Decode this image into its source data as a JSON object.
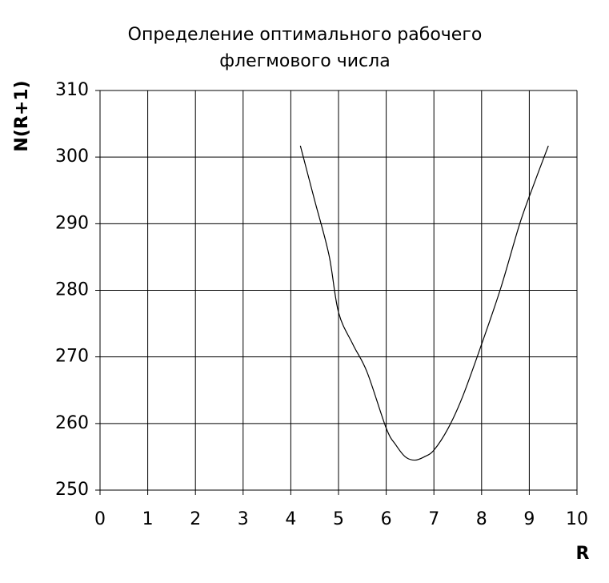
{
  "chart_data": {
    "type": "line",
    "title": [
      "Определение оптимального рабочего",
      "флегмового числа"
    ],
    "x_label": "R",
    "y_label": "N(R+1)",
    "x": [
      4.2,
      4.5,
      4.8,
      5.0,
      5.3,
      5.6,
      6.0,
      6.2,
      6.4,
      6.6,
      6.8,
      7.0,
      7.3,
      7.6,
      8.0,
      8.4,
      8.8,
      9.1,
      9.4
    ],
    "series": [
      {
        "color": "#000000",
        "values": [
          301.7,
          293.5,
          285.3,
          276.7,
          271.9,
          267.7,
          259.3,
          256.8,
          255.0,
          254.5,
          255.0,
          256.0,
          259.3,
          264.0,
          271.9,
          280.3,
          290.0,
          296.0,
          301.7
        ]
      }
    ],
    "xlim": [
      0,
      10
    ],
    "xticks": [
      0,
      1,
      2,
      3,
      4,
      5,
      6,
      7,
      8,
      9,
      10
    ],
    "ylim": [
      250,
      310
    ],
    "yticks": [
      250,
      260,
      270,
      280,
      290,
      300,
      310
    ],
    "grid": true
  }
}
